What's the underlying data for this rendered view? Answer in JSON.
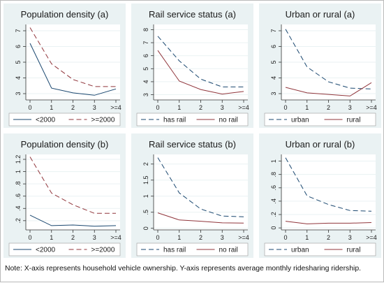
{
  "note": "Note: X-axis represents household vehicle ownership. Y-axis represents average monthly ridesharing ridership.",
  "colors": {
    "panel_bg": "#eaf2f3",
    "blue": "#1a476f",
    "red": "#90353b",
    "grid": "#ffffff",
    "text": "#1a1a1a"
  },
  "chart_data": [
    {
      "type": "line",
      "title": "Population density (a)",
      "categories": [
        "0",
        "1",
        "2",
        "3",
        ">=4"
      ],
      "ylim": [
        2.6,
        7.4
      ],
      "yticks": [
        3,
        4,
        5,
        6,
        7
      ],
      "ytick_labels": [
        "3",
        "4",
        "5",
        "6",
        "7"
      ],
      "series": [
        {
          "name": "<2000",
          "values": [
            6.2,
            3.35,
            3.05,
            2.9,
            3.3
          ],
          "color": "#1a476f",
          "dash": "solid"
        },
        {
          "name": ">=2000",
          "values": [
            7.2,
            4.9,
            3.9,
            3.45,
            3.45
          ],
          "color": "#90353b",
          "dash": "dashed"
        }
      ]
    },
    {
      "type": "line",
      "title": "Rail service status (a)",
      "categories": [
        "0",
        "1",
        "2",
        "3",
        ">=4"
      ],
      "ylim": [
        2.6,
        8.4
      ],
      "yticks": [
        3,
        4,
        5,
        6,
        7,
        8
      ],
      "ytick_labels": [
        "3",
        "4",
        "5",
        "6",
        "7",
        "8"
      ],
      "series": [
        {
          "name": "has rail",
          "values": [
            7.5,
            5.6,
            4.2,
            3.6,
            3.6
          ],
          "color": "#1a476f",
          "dash": "dashed"
        },
        {
          "name": "no rail",
          "values": [
            6.4,
            4.05,
            3.4,
            3.05,
            3.25
          ],
          "color": "#90353b",
          "dash": "solid"
        }
      ]
    },
    {
      "type": "line",
      "title": "Urban or rural (a)",
      "categories": [
        "0",
        "1",
        "2",
        "3",
        ">=4"
      ],
      "ylim": [
        2.6,
        7.4
      ],
      "yticks": [
        3,
        4,
        5,
        6,
        7
      ],
      "ytick_labels": [
        "3",
        "4",
        "5",
        "6",
        "7"
      ],
      "series": [
        {
          "name": "urban",
          "values": [
            7.1,
            4.7,
            3.75,
            3.35,
            3.3
          ],
          "color": "#1a476f",
          "dash": "dashed"
        },
        {
          "name": "rural",
          "values": [
            3.4,
            3.05,
            2.95,
            2.85,
            3.7
          ],
          "color": "#90353b",
          "dash": "solid"
        }
      ]
    },
    {
      "type": "line",
      "title": "Population density (b)",
      "categories": [
        "0",
        "1",
        "2",
        "3",
        ">=4"
      ],
      "ylim": [
        0.05,
        1.28
      ],
      "yticks": [
        0.2,
        0.4,
        0.6,
        0.8,
        1.0,
        1.2
      ],
      "ytick_labels": [
        ".2",
        ".4",
        ".6",
        ".8",
        "1",
        "1.2"
      ],
      "series": [
        {
          "name": "<2000",
          "values": [
            0.29,
            0.12,
            0.13,
            0.11,
            0.12
          ],
          "color": "#1a476f",
          "dash": "solid"
        },
        {
          "name": ">=2000",
          "values": [
            1.24,
            0.65,
            0.46,
            0.32,
            0.32
          ],
          "color": "#90353b",
          "dash": "dashed"
        }
      ]
    },
    {
      "type": "line",
      "title": "Rail service status (b)",
      "categories": [
        "0",
        "1",
        "2",
        "3",
        ">=4"
      ],
      "ylim": [
        -0.05,
        2.3
      ],
      "yticks": [
        0,
        0.5,
        1.0,
        1.5,
        2.0
      ],
      "ytick_labels": [
        "0",
        ".5",
        "1",
        "1.5",
        "2"
      ],
      "series": [
        {
          "name": "has rail",
          "values": [
            2.2,
            1.1,
            0.6,
            0.38,
            0.36
          ],
          "color": "#1a476f",
          "dash": "dashed"
        },
        {
          "name": "no rail",
          "values": [
            0.48,
            0.26,
            0.22,
            0.17,
            0.16
          ],
          "color": "#90353b",
          "dash": "solid"
        }
      ]
    },
    {
      "type": "line",
      "title": "Urban or rural (b)",
      "categories": [
        "0",
        "1",
        "2",
        "3",
        ">=4"
      ],
      "ylim": [
        -0.03,
        1.1
      ],
      "yticks": [
        0,
        0.2,
        0.4,
        0.6,
        0.8,
        1.0
      ],
      "ytick_labels": [
        "0",
        ".2",
        ".4",
        ".6",
        ".8",
        "1"
      ],
      "series": [
        {
          "name": "urban",
          "values": [
            1.05,
            0.48,
            0.35,
            0.26,
            0.25
          ],
          "color": "#1a476f",
          "dash": "dashed"
        },
        {
          "name": "rural",
          "values": [
            0.1,
            0.06,
            0.07,
            0.07,
            0.08
          ],
          "color": "#90353b",
          "dash": "solid"
        }
      ]
    }
  ]
}
